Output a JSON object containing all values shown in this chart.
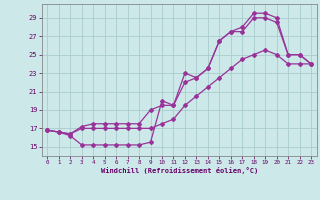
{
  "xlabel": "Windchill (Refroidissement éolien,°C)",
  "bg_color": "#cce8e8",
  "line_color": "#993399",
  "grid_color": "#aacccc",
  "x_ticks": [
    0,
    1,
    2,
    3,
    4,
    5,
    6,
    7,
    8,
    9,
    10,
    11,
    12,
    13,
    14,
    15,
    16,
    17,
    18,
    19,
    20,
    21,
    22,
    23
  ],
  "y_ticks": [
    15,
    17,
    19,
    21,
    23,
    25,
    27,
    29
  ],
  "xlim": [
    -0.5,
    23.5
  ],
  "ylim": [
    14.0,
    30.5
  ],
  "line1_x": [
    0,
    1,
    2,
    3,
    4,
    5,
    6,
    7,
    8,
    9,
    10,
    11,
    12,
    13,
    14,
    15,
    16,
    17,
    18,
    19,
    20,
    21,
    22,
    23
  ],
  "line1_y": [
    16.8,
    16.6,
    16.4,
    17.2,
    17.5,
    17.5,
    17.5,
    17.5,
    17.5,
    19.0,
    19.5,
    19.5,
    22.0,
    22.5,
    23.5,
    26.5,
    27.5,
    28.0,
    29.5,
    29.5,
    29.0,
    25.0,
    25.0,
    24.0
  ],
  "line2_x": [
    0,
    1,
    2,
    3,
    4,
    5,
    6,
    7,
    8,
    9,
    10,
    11,
    12,
    13,
    14,
    15,
    16,
    17,
    18,
    19,
    20,
    21,
    22,
    23
  ],
  "line2_y": [
    16.8,
    16.6,
    16.2,
    15.2,
    15.2,
    15.2,
    15.2,
    15.2,
    15.2,
    15.5,
    20.0,
    19.5,
    23.0,
    22.5,
    23.5,
    26.5,
    27.5,
    27.5,
    29.0,
    29.0,
    28.5,
    25.0,
    25.0,
    24.0
  ],
  "line3_x": [
    0,
    1,
    2,
    3,
    4,
    5,
    6,
    7,
    8,
    9,
    10,
    11,
    12,
    13,
    14,
    15,
    16,
    17,
    18,
    19,
    20,
    21,
    22,
    23
  ],
  "line3_y": [
    16.8,
    16.6,
    16.4,
    17.0,
    17.0,
    17.0,
    17.0,
    17.0,
    17.0,
    17.0,
    17.5,
    18.0,
    19.5,
    20.5,
    21.5,
    22.5,
    23.5,
    24.5,
    25.0,
    25.5,
    25.0,
    24.0,
    24.0,
    24.0
  ]
}
